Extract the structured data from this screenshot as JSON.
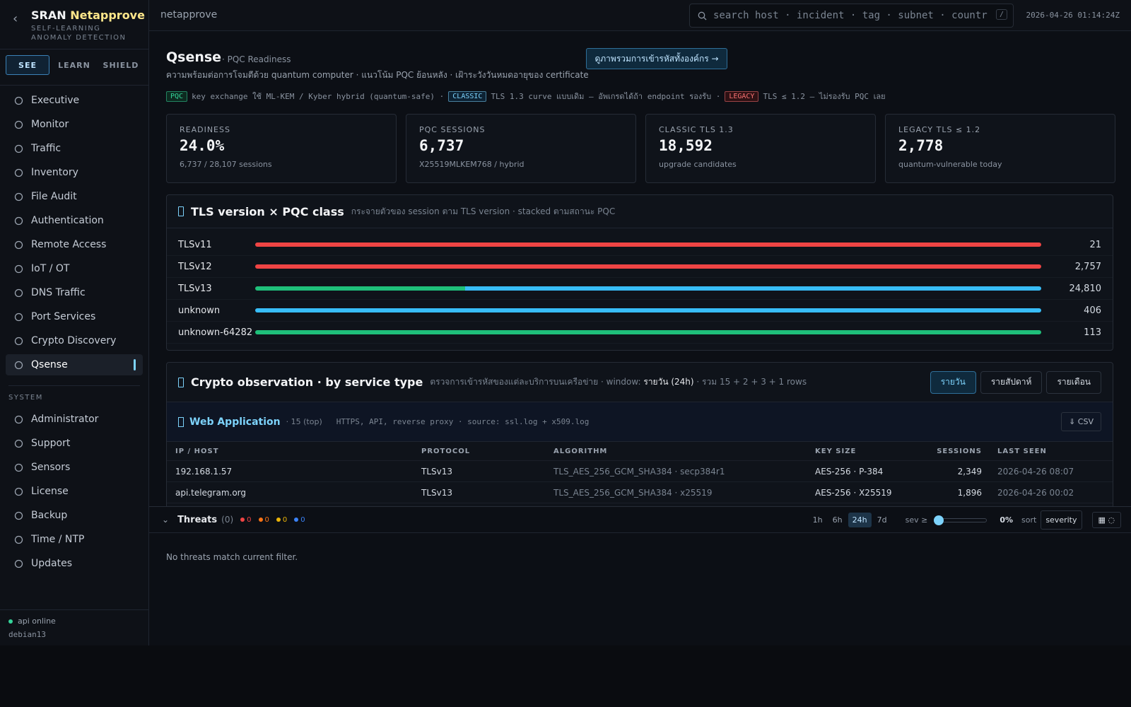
{
  "sidebar": {
    "brand": "SRAN",
    "brand_accent": "Netapprove",
    "tagline": [
      "SELF-LEARNING",
      "ANOMALY DETECTION"
    ],
    "tabs": [
      "SEE",
      "LEARN",
      "SHIELD"
    ],
    "nav": [
      "Executive",
      "Monitor",
      "Traffic",
      "Inventory",
      "File Audit",
      "Authentication",
      "Remote Access",
      "IoT / OT",
      "DNS Traffic",
      "Port Services",
      "Crypto Discovery",
      "Qsense"
    ],
    "system_label": "SYSTEM",
    "system_nav": [
      "Administrator",
      "Support",
      "Sensors",
      "License",
      "Backup",
      "Time / NTP",
      "Updates"
    ],
    "status": "api online",
    "host": "debian13"
  },
  "topbar": {
    "crumb": "netapprove",
    "search": "search host · incident · tag · subnet · countr",
    "search_key": "/",
    "clock": "2026-04-26 01:14:24Z"
  },
  "header": {
    "title": "Qsense",
    "subtitle": "· PQC Readiness",
    "desc": "ความพร้อมต่อการโจมตีด้วย quantum computer · แนวโน้ม PQC ย้อนหลัง · เฝ้าระวังวันหมดอายุของ certificate",
    "button": "ดูภาพรวมการเข้ารหัสทั้งองค์กร →"
  },
  "legend": [
    {
      "tag": "PQC",
      "text": "key exchange ใช้ ML-KEM / Kyber hybrid (quantum-safe) ·"
    },
    {
      "tag": "CLASSIC",
      "text": "TLS 1.3 curve แบบเดิม — อัพเกรดได้ถ้า endpoint รองรับ ·"
    },
    {
      "tag": "LEGACY",
      "text": "TLS ≤ 1.2 — ไม่รองรับ PQC เลย"
    }
  ],
  "kpis": [
    {
      "label": "READINESS",
      "value": "24.0%",
      "sub": "6,737 / 28,107 sessions"
    },
    {
      "label": "PQC SESSIONS",
      "value": "6,737",
      "sub": "X25519MLKEM768 / hybrid"
    },
    {
      "label": "CLASSIC TLS 1.3",
      "value": "18,592",
      "sub": "upgrade candidates"
    },
    {
      "label": "LEGACY TLS ≤ 1.2",
      "value": "2,778",
      "sub": "quantum-vulnerable today"
    }
  ],
  "tls_chart": {
    "title": "TLS version × PQC class",
    "subtitle": "กระจายตัวของ session ตาม TLS version · stacked ตามสถานะ PQC",
    "colors": {
      "pqc": "#1fbf7a",
      "classic": "#38bdf8",
      "legacy": "#ef4444"
    },
    "rows": [
      {
        "label": "TLSv11",
        "total": "21",
        "segments": [
          {
            "class": "legacy",
            "value": 21
          }
        ]
      },
      {
        "label": "TLSv12",
        "total": "2,757",
        "segments": [
          {
            "class": "legacy",
            "value": 2757
          }
        ]
      },
      {
        "label": "TLSv13",
        "total": "24,810",
        "segments": [
          {
            "class": "pqc",
            "value": 6624
          },
          {
            "class": "classic",
            "value": 18186
          }
        ]
      },
      {
        "label": "unknown",
        "total": "406",
        "segments": [
          {
            "class": "classic",
            "value": 406
          }
        ]
      },
      {
        "label": "unknown-64282",
        "total": "113",
        "segments": [
          {
            "class": "pqc",
            "value": 113
          }
        ]
      }
    ]
  },
  "crypto": {
    "title": "Crypto observation · by service type",
    "desc": "ตรวจการเข้ารหัสของแต่ละบริการบนเครือข่าย · window:",
    "window": "รายวัน (24h)",
    "desc_tail": "· รวม 15 + 2 + 3 + 1 rows",
    "tabs": [
      "รายวัน",
      "รายสัปดาห์",
      "รายเดือน"
    ],
    "group": {
      "title": "Web Application",
      "count": "· 15 (top)",
      "desc": "HTTPS, API, reverse proxy · source: ssl.log + x509.log",
      "csv": "⇓ CSV"
    },
    "table": {
      "columns": [
        "IP / HOST",
        "PROTOCOL",
        "ALGORITHM",
        "KEY SIZE",
        "SESSIONS",
        "LAST SEEN"
      ],
      "rows": [
        [
          "192.168.1.57",
          "TLSv13",
          "TLS_AES_256_GCM_SHA384 · secp384r1",
          "AES-256 · P-384",
          "2,349",
          "2026-04-26 08:07"
        ],
        [
          "api.telegram.org",
          "TLSv13",
          "TLS_AES_256_GCM_SHA384 · x25519",
          "AES-256 · X25519",
          "1,896",
          "2026-04-26 00:02"
        ]
      ]
    }
  },
  "threats": {
    "title": "Threats",
    "count": "(0)",
    "counts": [
      "0",
      "0",
      "0",
      "0"
    ],
    "ranges": [
      "1h",
      "6h",
      "24h",
      "7d"
    ],
    "sev_label": "sev ≥",
    "sev_value": "0%",
    "sort_label": "sort",
    "sort_value": "severity",
    "empty": "No threats match current filter."
  }
}
